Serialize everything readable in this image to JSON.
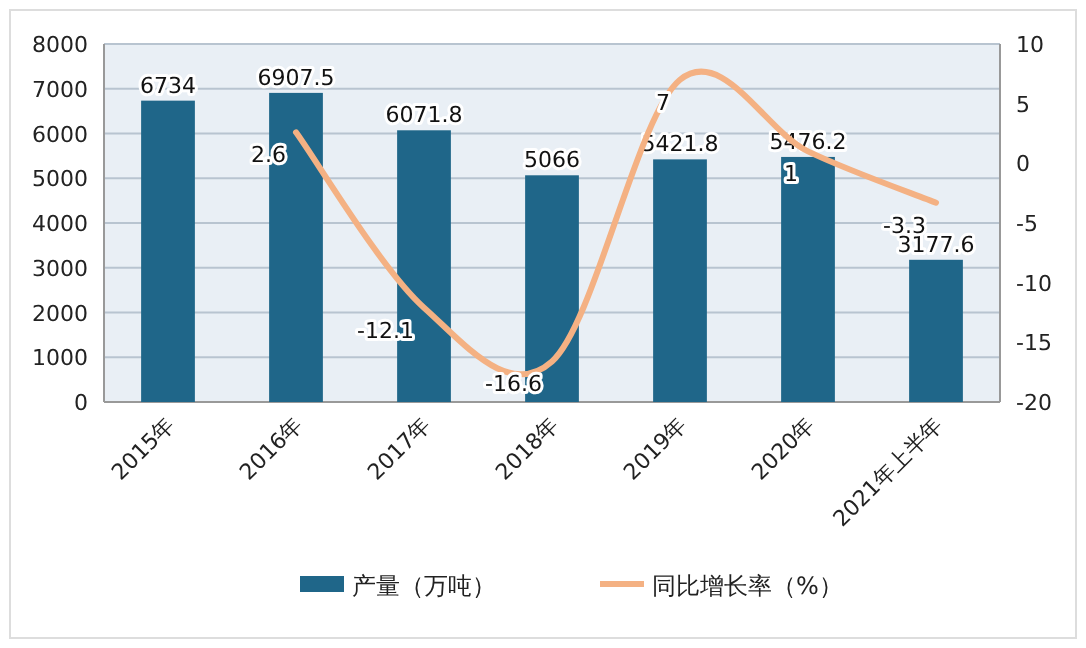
{
  "chart_data": {
    "type": "bar",
    "categories": [
      "2015年",
      "2016年",
      "2017年",
      "2018年",
      "2019年",
      "2020年",
      "2021年上半年"
    ],
    "series": [
      {
        "name": "产量（万吨）",
        "color": "#1f6689",
        "values": [
          6734,
          6907.5,
          6071.8,
          5066,
          5421.8,
          5476.2,
          3177.6
        ]
      },
      {
        "name": "同比增长率（%）",
        "type": "line",
        "axis": "y2",
        "color": "#f4b183",
        "values": [
          null,
          2.6,
          -12.1,
          -16.6,
          7,
          1,
          -3.3
        ]
      }
    ],
    "ylim": [
      0,
      8000
    ],
    "yticks": [
      0,
      1000,
      2000,
      3000,
      4000,
      5000,
      6000,
      7000,
      8000
    ],
    "y2lim": [
      -20,
      10
    ],
    "y2ticks": [
      -20,
      -15,
      -10,
      -5,
      0,
      5,
      10
    ],
    "data_labels": true,
    "grid": "y",
    "legend": "bottom",
    "marker": "none",
    "line_style": "solid"
  }
}
